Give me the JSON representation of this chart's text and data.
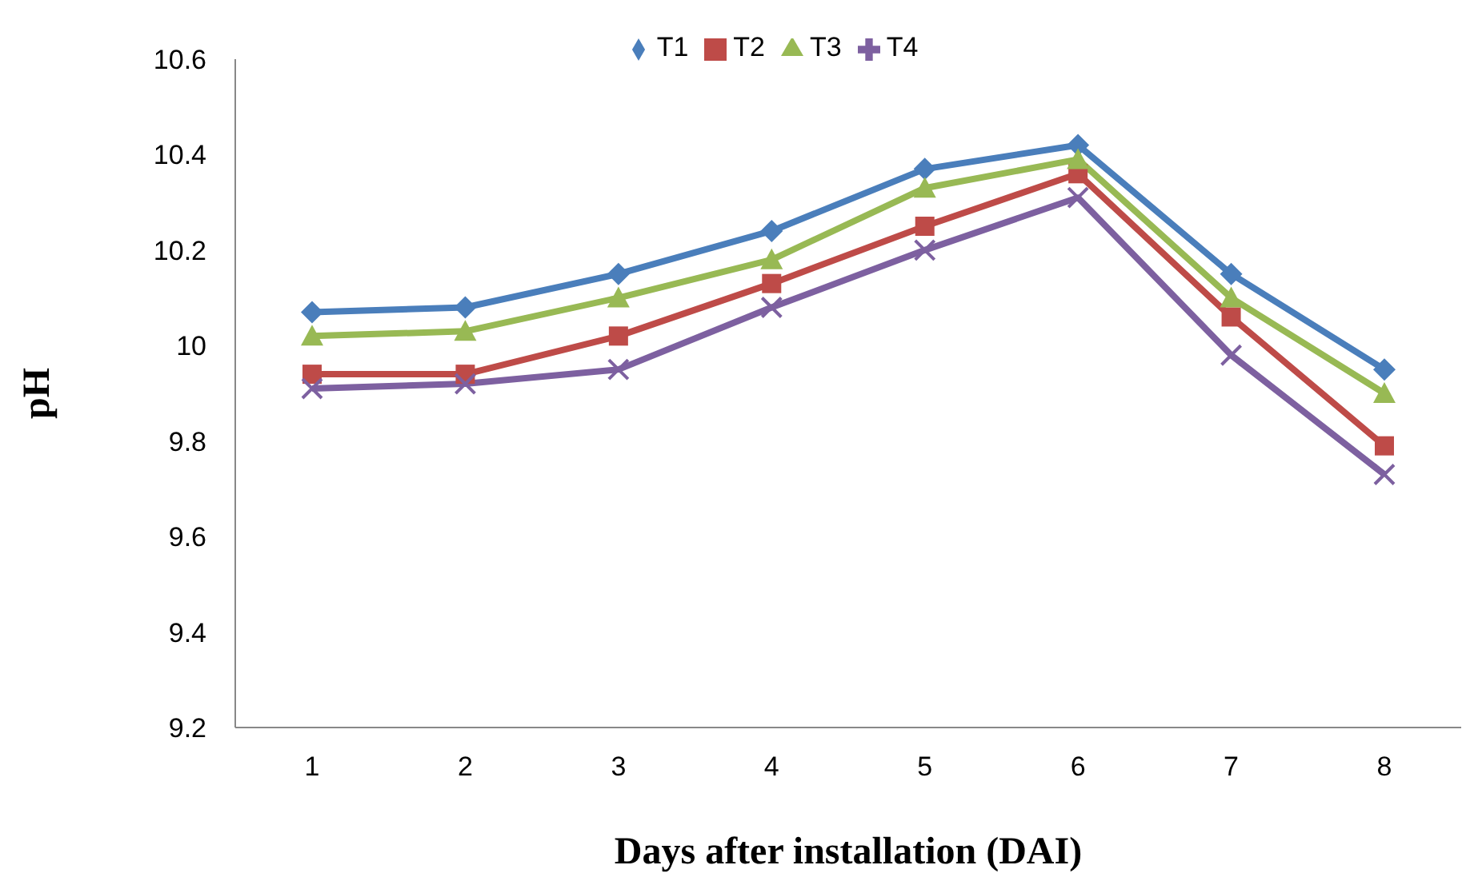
{
  "chart_data": {
    "type": "line",
    "xlabel": "Days after installation (DAI)",
    "ylabel": "pH",
    "categories": [
      "1",
      "2",
      "3",
      "4",
      "5",
      "6",
      "7",
      "8"
    ],
    "series": [
      {
        "name": "T1",
        "color": "#4a7ebb",
        "marker": "diamond",
        "values": [
          10.07,
          10.08,
          10.15,
          10.24,
          10.37,
          10.42,
          10.15,
          9.95
        ]
      },
      {
        "name": "T2",
        "color": "#be4b48",
        "marker": "square",
        "values": [
          9.94,
          9.94,
          10.02,
          10.13,
          10.25,
          10.36,
          10.06,
          9.79
        ]
      },
      {
        "name": "T3",
        "color": "#98b954",
        "marker": "triangle",
        "values": [
          10.02,
          10.03,
          10.1,
          10.18,
          10.33,
          10.39,
          10.1,
          9.9
        ]
      },
      {
        "name": "T4",
        "color": "#7d60a0",
        "marker": "cross",
        "values": [
          9.91,
          9.92,
          9.95,
          10.08,
          10.2,
          10.31,
          9.98,
          9.73
        ]
      }
    ],
    "ylim": [
      9.2,
      10.6
    ],
    "yticks": [
      9.2,
      9.4,
      9.6,
      9.8,
      10,
      10.2,
      10.4,
      10.6
    ],
    "grid": false,
    "legend": "top",
    "line_style": "solid"
  }
}
